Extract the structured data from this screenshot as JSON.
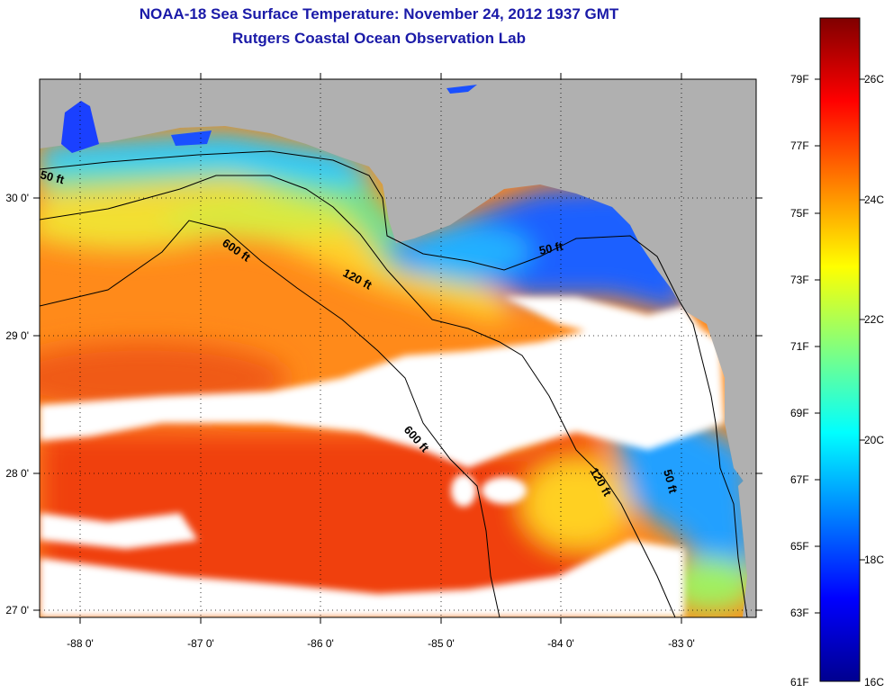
{
  "title": {
    "line1": "NOAA-18 Sea Surface Temperature:  November 24, 2012 1937 GMT",
    "line2": "Rutgers Coastal Ocean Observation Lab"
  },
  "map": {
    "lon_ticks": [
      "-88 0'",
      "-87 0'",
      "-86 0'",
      "-85 0'",
      "-84 0'",
      "-83 0'"
    ],
    "lat_ticks": [
      "27 0'",
      "28 0'",
      "29 0'",
      "30 0'"
    ],
    "contours": [
      {
        "label": "50 ft"
      },
      {
        "label": "120 ft"
      },
      {
        "label": "600 ft"
      },
      {
        "label": "600 ft"
      },
      {
        "label": "50 ft"
      },
      {
        "label": "120 ft"
      },
      {
        "label": "50 ft"
      }
    ]
  },
  "colorbar": {
    "f_labels": [
      "79F",
      "77F",
      "75F",
      "73F",
      "71F",
      "69F",
      "67F",
      "65F",
      "63F",
      "61F"
    ],
    "c_labels": [
      "26C",
      "24C",
      "22C",
      "20C",
      "18C",
      "16C"
    ],
    "colors": [
      "#800000",
      "#ff0000",
      "#ff8000",
      "#ffff00",
      "#80ff80",
      "#00ffff",
      "#0080ff",
      "#0000ff",
      "#00008f"
    ]
  },
  "colors": {
    "title": "#1a1aa8",
    "land": "#b0b0b0",
    "cloud": "#ffffff"
  }
}
